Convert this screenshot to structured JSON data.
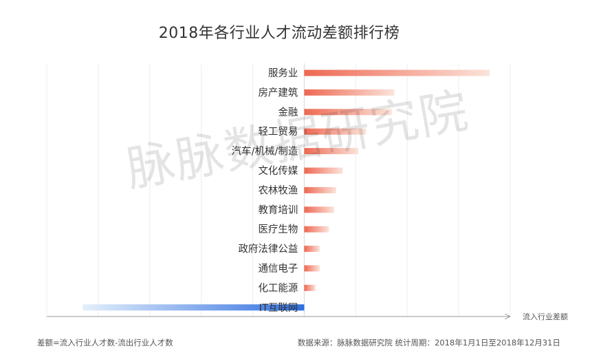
{
  "chart_data": {
    "type": "bar",
    "orientation": "horizontal",
    "title": "2018年各行业人才流动差额排行榜",
    "xlabel": "流入行业差额",
    "categories": [
      "服务业",
      "房产建筑",
      "金融",
      "轻工贸易",
      "汽车/机械/制造",
      "文化传媒",
      "农林牧渔",
      "教育培训",
      "医疗生物",
      "政府法律公益",
      "通信电子",
      "化工能源",
      "IT互联网"
    ],
    "values": [
      3.6,
      1.75,
      1.7,
      1.2,
      1.05,
      0.75,
      0.62,
      0.58,
      0.48,
      0.3,
      0.3,
      0.22,
      -4.3
    ],
    "xlim": [
      -5,
      4
    ],
    "grid": true,
    "positive_color_start": "#ee6852",
    "positive_color_end": "#fbe3da",
    "negative_color_start": "#2f6fe0",
    "negative_color_end": "#e4effb"
  },
  "footnote_left": "差额=流入行业人才数-流出行业人才数",
  "footnote_right": "数据来源：脉脉数据研究院   统计周期：2018年1月1日至2018年12月31日",
  "watermark": "脉脉数据研究院"
}
